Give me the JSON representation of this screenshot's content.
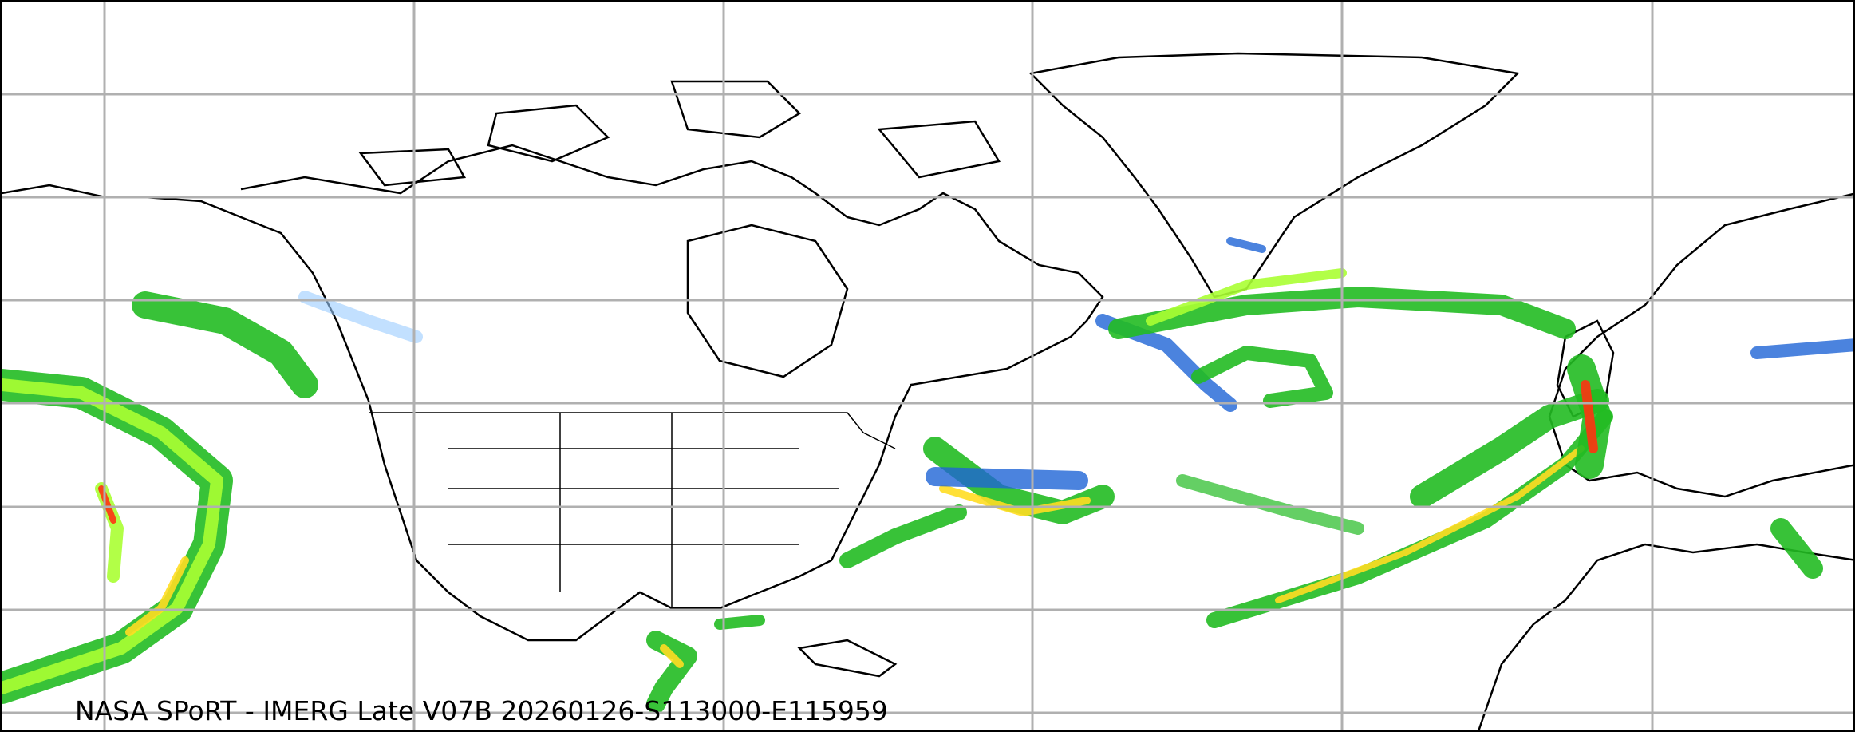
{
  "map": {
    "caption": "NASA SPoRT - IMERG Late V07B 20260126-S113000-E115959",
    "product": "IMERG Late V07B precipitation",
    "projection": "equirectangular",
    "gridlines": true,
    "colors": {
      "background": "#ffffff",
      "grid": "#b0b0b0",
      "coastline": "#000000",
      "precip_light": "#22bb22",
      "precip_moderate": "#aaff33",
      "precip_heavy": "#ffdd22",
      "precip_intense": "#ff3311",
      "snow_light": "#99ccff",
      "snow_heavy": "#1e64d6",
      "mixed": "#cc44dd"
    }
  }
}
